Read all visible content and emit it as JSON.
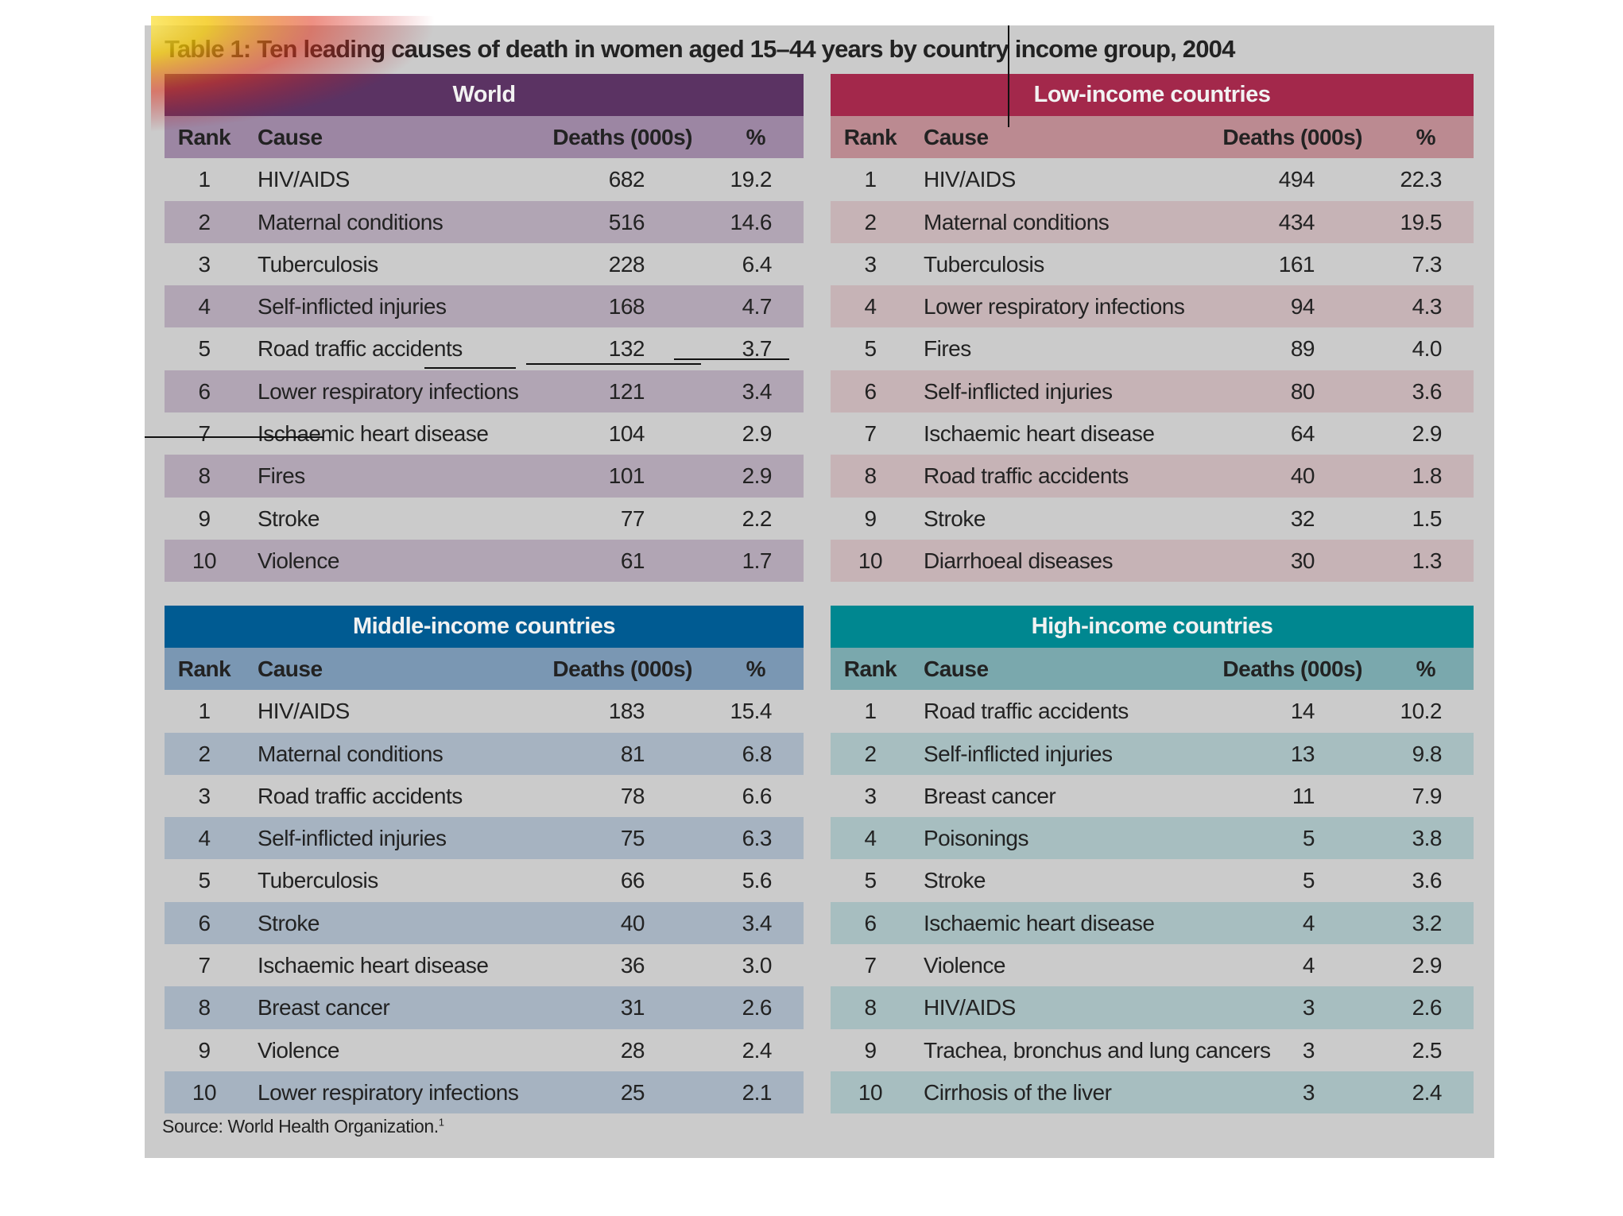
{
  "title": "Table 1: Ten leading causes of death in women aged 15–44 years by country income group, 2004",
  "headers": {
    "rank": "Rank",
    "cause": "Cause",
    "deaths": "Deaths (000s)",
    "pct": "%"
  },
  "tables": [
    {
      "name": "World",
      "rows": [
        [
          "1",
          "HIV/AIDS",
          "682",
          "19.2"
        ],
        [
          "2",
          "Maternal conditions",
          "516",
          "14.6"
        ],
        [
          "3",
          "Tuberculosis",
          "228",
          "6.4"
        ],
        [
          "4",
          "Self-inflicted injuries",
          "168",
          "4.7"
        ],
        [
          "5",
          "Road traffic accidents",
          "132",
          "3.7"
        ],
        [
          "6",
          "Lower respiratory infections",
          "121",
          "3.4"
        ],
        [
          "7",
          "Ischaemic heart disease",
          "104",
          "2.9"
        ],
        [
          "8",
          "Fires",
          "101",
          "2.9"
        ],
        [
          "9",
          "Stroke",
          "77",
          "2.2"
        ],
        [
          "10",
          "Violence",
          "61",
          "1.7"
        ]
      ]
    },
    {
      "name": "Low-income countries",
      "rows": [
        [
          "1",
          "HIV/AIDS",
          "494",
          "22.3"
        ],
        [
          "2",
          "Maternal conditions",
          "434",
          "19.5"
        ],
        [
          "3",
          "Tuberculosis",
          "161",
          "7.3"
        ],
        [
          "4",
          "Lower respiratory infections",
          "94",
          "4.3"
        ],
        [
          "5",
          "Fires",
          "89",
          "4.0"
        ],
        [
          "6",
          "Self-inflicted injuries",
          "80",
          "3.6"
        ],
        [
          "7",
          "Ischaemic heart disease",
          "64",
          "2.9"
        ],
        [
          "8",
          "Road traffic accidents",
          "40",
          "1.8"
        ],
        [
          "9",
          "Stroke",
          "32",
          "1.5"
        ],
        [
          "10",
          "Diarrhoeal diseases",
          "30",
          "1.3"
        ]
      ]
    },
    {
      "name": "Middle-income countries",
      "rows": [
        [
          "1",
          "HIV/AIDS",
          "183",
          "15.4"
        ],
        [
          "2",
          "Maternal conditions",
          "81",
          "6.8"
        ],
        [
          "3",
          "Road traffic accidents",
          "78",
          "6.6"
        ],
        [
          "4",
          "Self-inflicted injuries",
          "75",
          "6.3"
        ],
        [
          "5",
          "Tuberculosis",
          "66",
          "5.6"
        ],
        [
          "6",
          "Stroke",
          "40",
          "3.4"
        ],
        [
          "7",
          "Ischaemic heart disease",
          "36",
          "3.0"
        ],
        [
          "8",
          "Breast cancer",
          "31",
          "2.6"
        ],
        [
          "9",
          "Violence",
          "28",
          "2.4"
        ],
        [
          "10",
          "Lower respiratory infections",
          "25",
          "2.1"
        ]
      ]
    },
    {
      "name": "High-income countries",
      "rows": [
        [
          "1",
          "Road traffic accidents",
          "14",
          "10.2"
        ],
        [
          "2",
          "Self-inflicted injuries",
          "13",
          "9.8"
        ],
        [
          "3",
          "Breast cancer",
          "11",
          "7.9"
        ],
        [
          "4",
          "Poisonings",
          "5",
          "3.8"
        ],
        [
          "5",
          "Stroke",
          "5",
          "3.6"
        ],
        [
          "6",
          "Ischaemic heart disease",
          "4",
          "3.2"
        ],
        [
          "7",
          "Violence",
          "4",
          "2.9"
        ],
        [
          "8",
          "HIV/AIDS",
          "3",
          "2.6"
        ],
        [
          "9",
          "Trachea, bronchus and lung cancers",
          "3",
          "2.5"
        ],
        [
          "10",
          "Cirrhosis of the liver",
          "3",
          "2.4"
        ]
      ]
    }
  ],
  "source": "Source: World Health Organization.",
  "source_note": "1"
}
